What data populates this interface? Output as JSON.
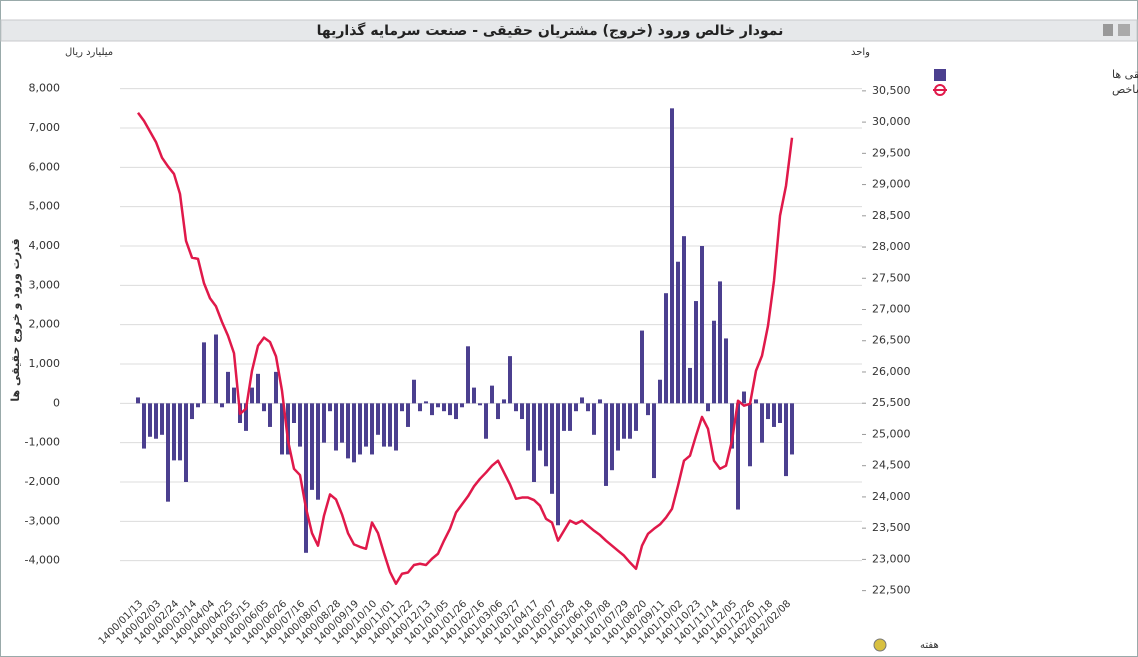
{
  "chart_data": {
    "type": "bar",
    "title": "نمودار خالص ورود (خروج) مشتریان حقیقی - صنعت سرمایه گذاریها",
    "y_unit": "میلیارد ریال",
    "y2_unit": "واحد",
    "y_label": "قدرت ورود و خروج حقیقی ها",
    "x_label": "هفته",
    "categories": [
      "1400/01/13",
      null,
      null,
      "1400/02/03",
      null,
      null,
      "1400/02/24",
      null,
      null,
      "1400/03/14",
      null,
      null,
      "1400/04/04",
      null,
      null,
      "1400/04/25",
      null,
      null,
      "1400/05/15",
      null,
      null,
      "1400/06/05",
      null,
      null,
      "1400/06/26",
      null,
      null,
      "1400/07/16",
      null,
      null,
      "1400/08/07",
      null,
      null,
      "1400/08/28",
      null,
      null,
      "1400/09/19",
      null,
      null,
      "1400/10/10",
      null,
      null,
      "1400/11/01",
      null,
      null,
      "1400/11/22",
      null,
      null,
      "1400/12/13",
      null,
      null,
      "1401/01/05",
      null,
      null,
      "1401/01/26",
      null,
      null,
      "1401/02/16",
      null,
      null,
      "1401/03/06",
      null,
      null,
      "1401/03/27",
      null,
      null,
      "1401/04/17",
      null,
      null,
      "1401/05/07",
      null,
      null,
      "1401/05/28",
      null,
      null,
      "1401/06/18",
      null,
      null,
      "1401/07/08",
      null,
      null,
      "1401/07/29",
      null,
      null,
      "1401/08/20",
      null,
      null,
      "1401/09/11",
      null,
      null,
      "1401/10/02",
      null,
      null,
      "1401/10/23",
      null,
      null,
      "1401/11/14",
      null,
      null,
      "1401/12/05",
      null,
      null,
      "1401/12/26",
      null,
      null,
      "1402/01/18",
      null,
      null,
      "1402/02/08",
      null
    ],
    "series": [
      {
        "name": "قدرت ورود و خروج حقیقی ها",
        "type": "bar",
        "color": "#4b3f8f",
        "values": [
          150,
          -1150,
          -850,
          -900,
          -800,
          -2500,
          -1450,
          -1450,
          -2000,
          -400,
          -100,
          1550,
          0,
          1750,
          -100,
          800,
          400,
          -500,
          -700,
          400,
          750,
          -200,
          -600,
          800,
          -1300,
          -1300,
          -500,
          -1100,
          -3800,
          -2200,
          -2450,
          -1000,
          -200,
          -1200,
          -1000,
          -1400,
          -1500,
          -1300,
          -1100,
          -1300,
          -800,
          -1100,
          -1100,
          -1200,
          -200,
          -600,
          600,
          -200,
          50,
          -300,
          -100,
          -200,
          -300,
          -400,
          -100,
          1450,
          400,
          -50,
          -900,
          450,
          -400,
          100,
          1200,
          -200,
          -400,
          -1200,
          -2000,
          -1200,
          -1600,
          -2300,
          -3100,
          -700,
          -700,
          -200,
          150,
          -200,
          -800,
          100,
          -2100,
          -1700,
          -1200,
          -900,
          -900,
          -700,
          1850,
          -300,
          -1900,
          600,
          2800,
          7500,
          3600,
          4250,
          900,
          2600,
          4000,
          -200,
          2100,
          3100,
          1650,
          -1150,
          -2700,
          300,
          -1600,
          100,
          -1000,
          -400,
          -600,
          -500,
          -1850,
          -1300
        ]
      },
      {
        "name": "شاخص",
        "type": "line",
        "axis": "y2",
        "color": "#e0194a",
        "values": [
          30150,
          30020,
          29850,
          29680,
          29430,
          29290,
          29170,
          28850,
          28100,
          27830,
          27810,
          27420,
          27180,
          27050,
          26800,
          26580,
          26300,
          25330,
          25410,
          26020,
          26420,
          26550,
          26480,
          26250,
          25700,
          24900,
          24450,
          24350,
          23820,
          23420,
          23220,
          23700,
          24040,
          23960,
          23720,
          23420,
          23240,
          23200,
          23170,
          23590,
          23420,
          23100,
          22800,
          22610,
          22770,
          22790,
          22910,
          22930,
          22910,
          23010,
          23090,
          23300,
          23490,
          23750,
          23880,
          24010,
          24170,
          24290,
          24390,
          24500,
          24580,
          24390,
          24200,
          23970,
          23990,
          23990,
          23950,
          23860,
          23650,
          23590,
          23300,
          23460,
          23620,
          23570,
          23620,
          23540,
          23460,
          23390,
          23300,
          23220,
          23140,
          23060,
          22950,
          22850,
          23220,
          23410,
          23490,
          23560,
          23670,
          23810,
          24180,
          24580,
          24660,
          24980,
          25280,
          25090,
          24580,
          24450,
          24500,
          24900,
          25540,
          25460,
          25490,
          26020,
          26260,
          26740,
          27460,
          28500,
          28980,
          29750
        ]
      }
    ],
    "ylim": [
      -5000,
      8500
    ],
    "yticks": [
      {
        "value": -4000,
        "label": "-4,000"
      },
      {
        "value": -3000,
        "label": "-3,000"
      },
      {
        "value": -2000,
        "label": "-2,000"
      },
      {
        "value": -1000,
        "label": "-1,000"
      },
      0,
      {
        "value": 1000,
        "label": "1,000"
      },
      {
        "value": 2000,
        "label": "2,000"
      },
      {
        "value": 3000,
        "label": "3,000"
      },
      {
        "value": 4000,
        "label": "4,000"
      },
      {
        "value": 5000,
        "label": "5,000"
      },
      {
        "value": 6000,
        "label": "6,000"
      },
      {
        "value": 7000,
        "label": "7,000"
      },
      {
        "value": 8000,
        "label": "8,000"
      }
    ],
    "y2lim": [
      22350,
      30850
    ],
    "y2ticks": [
      {
        "value": 22500,
        "label": "22,500"
      },
      {
        "value": 23000,
        "label": "23,000"
      },
      {
        "value": 23500,
        "label": "23,500"
      },
      {
        "value": 24000,
        "label": "24,000"
      },
      {
        "value": 24500,
        "label": "24,500"
      },
      {
        "value": 25000,
        "label": "25,000"
      },
      {
        "value": 25500,
        "label": "25,500"
      },
      {
        "value": 26000,
        "label": "26,000"
      },
      {
        "value": 26500,
        "label": "26,500"
      },
      {
        "value": 27000,
        "label": "27,000"
      },
      {
        "value": 27500,
        "label": "27,500"
      },
      {
        "value": 28000,
        "label": "28,000"
      },
      {
        "value": 28500,
        "label": "28,500"
      },
      {
        "value": 29000,
        "label": "29,000"
      },
      {
        "value": 29500,
        "label": "29,500"
      },
      {
        "value": 30000,
        "label": "30,000"
      },
      {
        "value": 30500,
        "label": "30,500"
      }
    ],
    "grid": true,
    "legend": "top-right"
  }
}
